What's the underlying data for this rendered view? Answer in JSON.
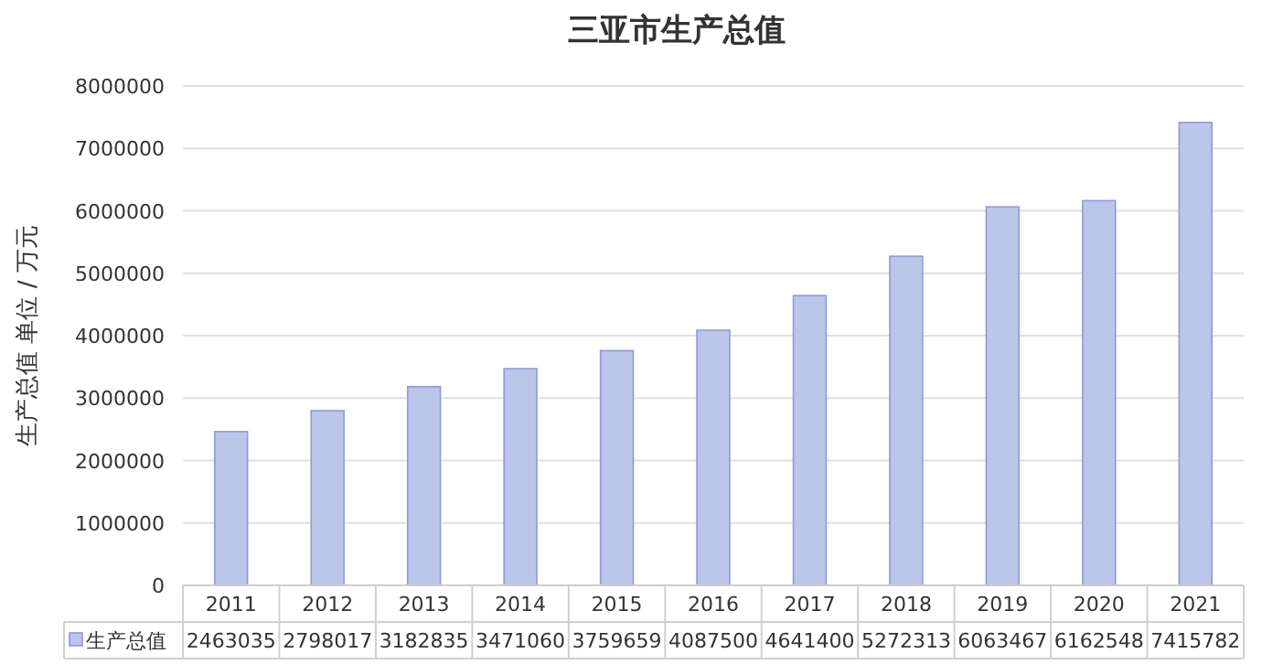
{
  "chart_data": {
    "type": "bar",
    "title": "三亚市生产总值",
    "ylabel": "生产总值 单位 / 万元",
    "categories": [
      "2011",
      "2012",
      "2013",
      "2014",
      "2015",
      "2016",
      "2017",
      "2018",
      "2019",
      "2020",
      "2021"
    ],
    "series": [
      {
        "name": "生产总值",
        "color": "#bcc5ea",
        "values": [
          2463035,
          2798017,
          3182835,
          3471060,
          3759659,
          4087500,
          4641400,
          5272313,
          6063467,
          6162548,
          7415782
        ]
      }
    ],
    "ylim": [
      0,
      8000000
    ],
    "yticks": [
      0,
      1000000,
      2000000,
      3000000,
      4000000,
      5000000,
      6000000,
      7000000,
      8000000
    ],
    "grid": "y",
    "legend": "bottom",
    "data_labels": true
  }
}
